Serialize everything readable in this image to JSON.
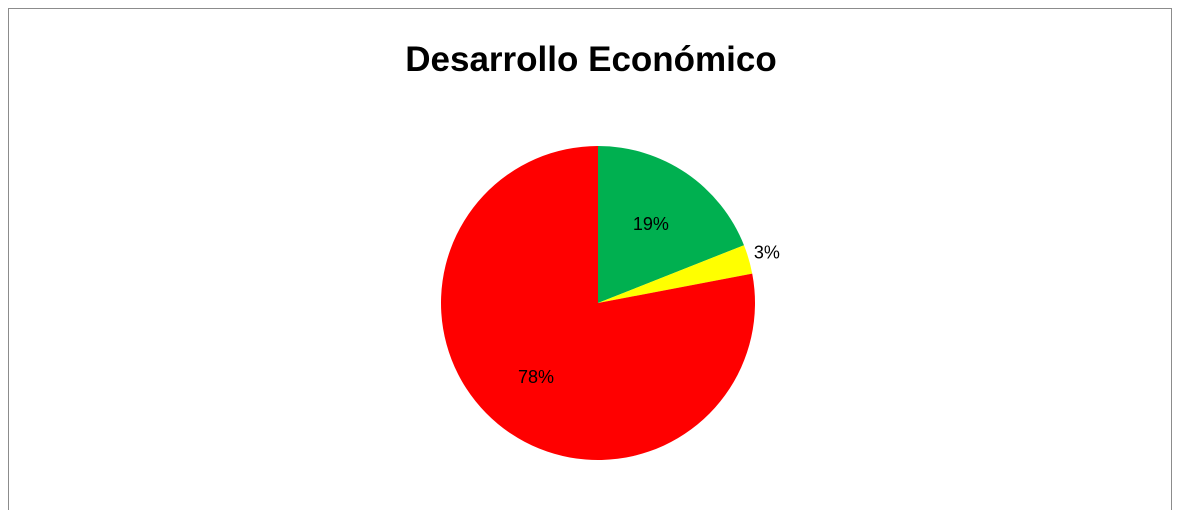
{
  "chart_data": {
    "type": "pie",
    "title": "Desarrollo Económico",
    "categories": [
      "",
      "",
      ""
    ],
    "values": [
      19,
      3,
      78
    ],
    "labels": [
      "19%",
      "3%",
      "78%"
    ],
    "colors": [
      "#00b050",
      "#ffff00",
      "#ff0000"
    ],
    "start_angle_deg": 0,
    "direction": "clockwise",
    "legend": "none"
  }
}
